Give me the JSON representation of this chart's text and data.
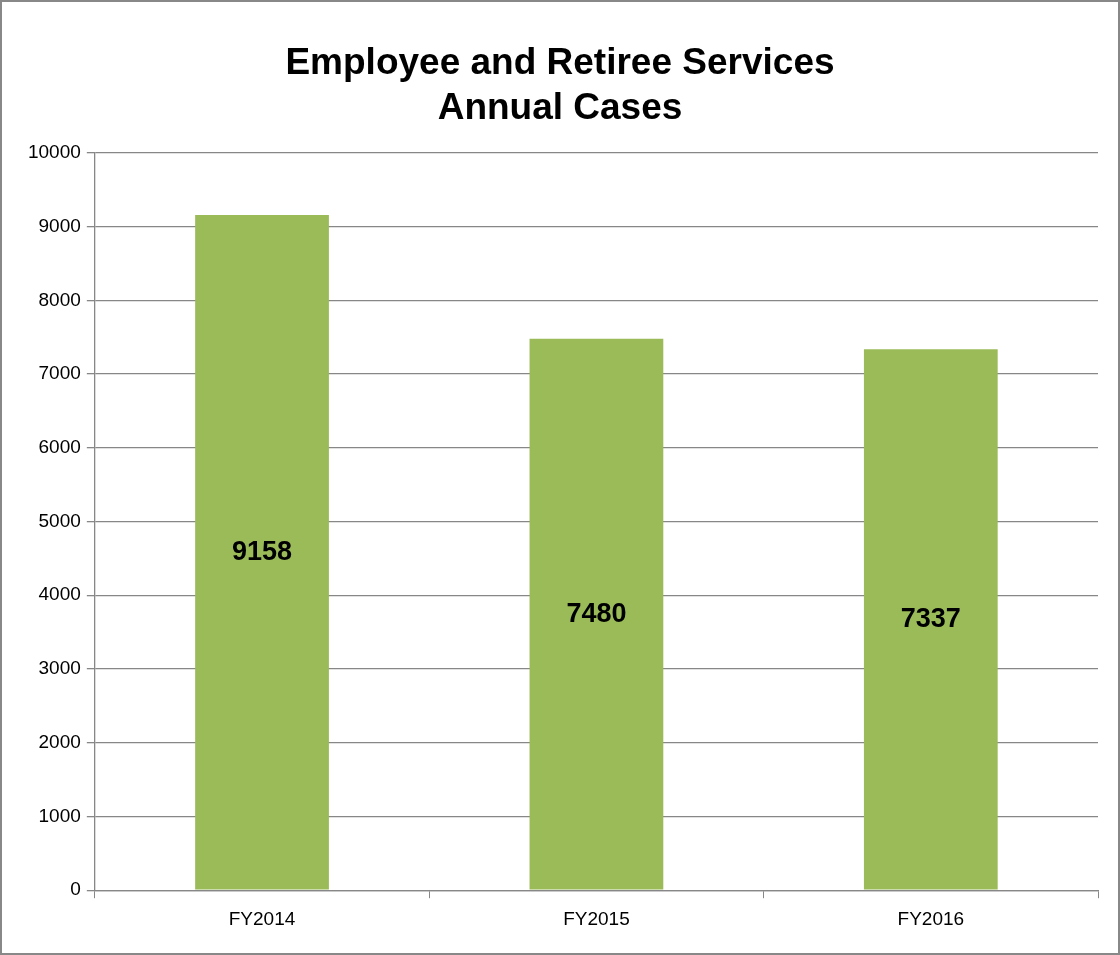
{
  "chart_data": {
    "type": "bar",
    "title": "Employee and Retiree Services\nAnnual Cases",
    "categories": [
      "FY2014",
      "FY2015",
      "FY2016"
    ],
    "values": [
      9158,
      7480,
      7337
    ],
    "color": "#9bbb59",
    "ylim": [
      0,
      10000
    ],
    "yticks": [
      0,
      1000,
      2000,
      3000,
      4000,
      5000,
      6000,
      7000,
      8000,
      9000,
      10000
    ],
    "grid": "y",
    "legend": false,
    "data_labels": true
  }
}
